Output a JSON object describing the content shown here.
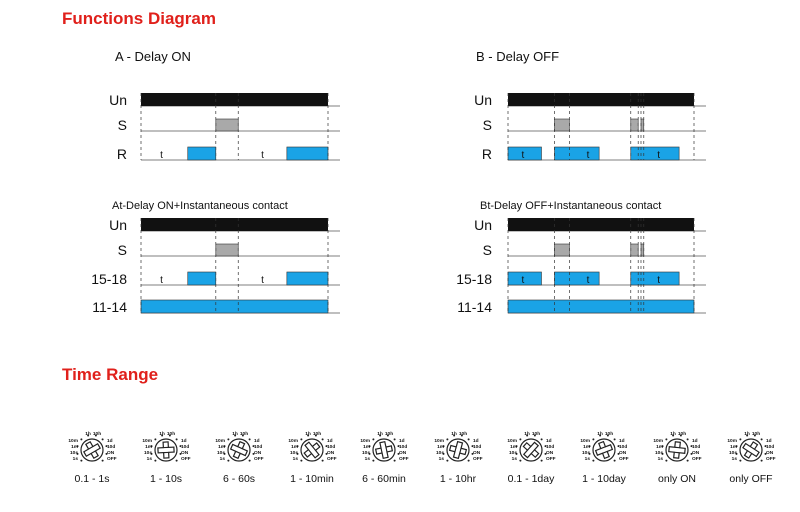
{
  "headings": {
    "functions": "Functions Diagram",
    "time_range": "Time Range"
  },
  "panels": [
    {
      "title": "A - Delay ON",
      "rows": [
        {
          "label": "Un",
          "kind": "supply",
          "pulses": [
            {
              "start": 0,
              "end": 1
            }
          ]
        },
        {
          "label": "S",
          "kind": "control",
          "pulses": [
            {
              "start": 0.4,
              "end": 0.52
            }
          ]
        },
        {
          "label": "R",
          "kind": "relay",
          "pulses": [
            {
              "start": 0.25,
              "end": 0.4
            },
            {
              "start": 0.78,
              "end": 1
            }
          ],
          "texts": [
            {
              "label": "t",
              "at": 0.11
            },
            {
              "label": "t",
              "at": 0.65
            }
          ]
        }
      ]
    },
    {
      "title": "B - Delay OFF",
      "rows": [
        {
          "label": "Un",
          "kind": "supply",
          "pulses": [
            {
              "start": 0,
              "end": 1
            }
          ]
        },
        {
          "label": "S",
          "kind": "control",
          "pulses": [
            {
              "start": 0.25,
              "end": 0.33
            },
            {
              "start": 0.66,
              "end": 0.7
            },
            {
              "start": 0.715,
              "end": 0.73
            }
          ]
        },
        {
          "label": "R",
          "kind": "relay",
          "pulses": [
            {
              "start": 0,
              "end": 0.18
            },
            {
              "start": 0.25,
              "end": 0.49
            },
            {
              "start": 0.66,
              "end": 0.92
            }
          ],
          "texts": [
            {
              "label": "t",
              "at": 0.08
            },
            {
              "label": "t",
              "at": 0.43
            },
            {
              "label": "t",
              "at": 0.81
            }
          ]
        }
      ]
    },
    {
      "title": "At-Delay ON+Instantaneous contact",
      "rows": [
        {
          "label": "Un",
          "kind": "supply",
          "pulses": [
            {
              "start": 0,
              "end": 1
            }
          ]
        },
        {
          "label": "S",
          "kind": "control",
          "pulses": [
            {
              "start": 0.4,
              "end": 0.52
            }
          ]
        },
        {
          "label": "15-18",
          "kind": "relay",
          "pulses": [
            {
              "start": 0.25,
              "end": 0.4
            },
            {
              "start": 0.78,
              "end": 1
            }
          ],
          "texts": [
            {
              "label": "t",
              "at": 0.11
            },
            {
              "label": "t",
              "at": 0.65
            }
          ]
        },
        {
          "label": "11-14",
          "kind": "relay",
          "pulses": [
            {
              "start": 0,
              "end": 1
            }
          ]
        }
      ]
    },
    {
      "title": "Bt-Delay OFF+Instantaneous contact",
      "rows": [
        {
          "label": "Un",
          "kind": "supply",
          "pulses": [
            {
              "start": 0,
              "end": 1
            }
          ]
        },
        {
          "label": "S",
          "kind": "control",
          "pulses": [
            {
              "start": 0.25,
              "end": 0.33
            },
            {
              "start": 0.66,
              "end": 0.7
            },
            {
              "start": 0.715,
              "end": 0.73
            }
          ]
        },
        {
          "label": "15-18",
          "kind": "relay",
          "pulses": [
            {
              "start": 0,
              "end": 0.18
            },
            {
              "start": 0.25,
              "end": 0.49
            },
            {
              "start": 0.66,
              "end": 0.92
            }
          ],
          "texts": [
            {
              "label": "t",
              "at": 0.08
            },
            {
              "label": "t",
              "at": 0.43
            },
            {
              "label": "t",
              "at": 0.81
            }
          ]
        },
        {
          "label": "11-14",
          "kind": "relay",
          "pulses": [
            {
              "start": 0,
              "end": 1
            }
          ]
        }
      ]
    }
  ],
  "colors": {
    "supply": "#111111",
    "control": "#a9a9a9",
    "relay": "#1aa3e6",
    "heading": "#e0201b",
    "line": "#555555"
  },
  "dial_positions_left": [
    "10m",
    "1m",
    "10s",
    "1s"
  ],
  "dial_positions_top": [
    "1h",
    "10h"
  ],
  "dial_positions_right": [
    "1d",
    "10d",
    "ON",
    "OFF"
  ],
  "time_ranges": [
    "0.1 - 1s",
    "1 - 10s",
    "6 - 60s",
    "1 - 10min",
    "6 - 60min",
    "1 - 10hr",
    "0.1 - 1day",
    "1 - 10day",
    "only ON",
    "only OFF"
  ]
}
